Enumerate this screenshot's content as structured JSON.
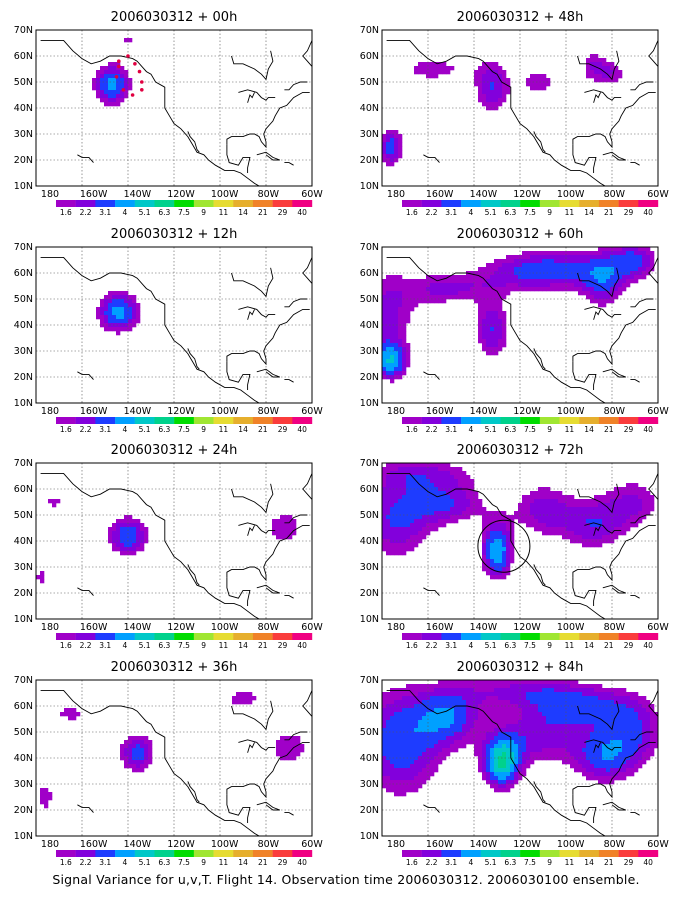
{
  "figure": {
    "caption": "Signal Variance for u,v,T. Flight 14. Observation time 2006030312. 2006030100 ensemble.",
    "lat_labels": [
      "70N",
      "60N",
      "50N",
      "40N",
      "30N",
      "20N",
      "10N"
    ],
    "lon_labels": [
      "180",
      "160W",
      "140W",
      "120W",
      "100W",
      "80W",
      "60W"
    ],
    "colorbar": {
      "colors": [
        "#a000c8",
        "#8200dc",
        "#1e3cff",
        "#00a0ff",
        "#00c8c8",
        "#00d28c",
        "#00dc00",
        "#a0e632",
        "#e6dc32",
        "#e6af2d",
        "#f08228",
        "#fa3c3c",
        "#f00082"
      ],
      "labels": [
        "1.6",
        "2.2",
        "3.1",
        "4",
        "5.1",
        "6.3",
        "7.5",
        "9",
        "11",
        "14",
        "21",
        "29",
        "40"
      ]
    },
    "panels": [
      {
        "title": "2006030312 + 00h"
      },
      {
        "title": "2006030312 + 48h"
      },
      {
        "title": "2006030312 + 12h"
      },
      {
        "title": "2006030312 + 60h"
      },
      {
        "title": "2006030312 + 24h"
      },
      {
        "title": "2006030312 + 72h"
      },
      {
        "title": "2006030312 + 36h"
      },
      {
        "title": "2006030312 + 84h"
      }
    ]
  }
}
